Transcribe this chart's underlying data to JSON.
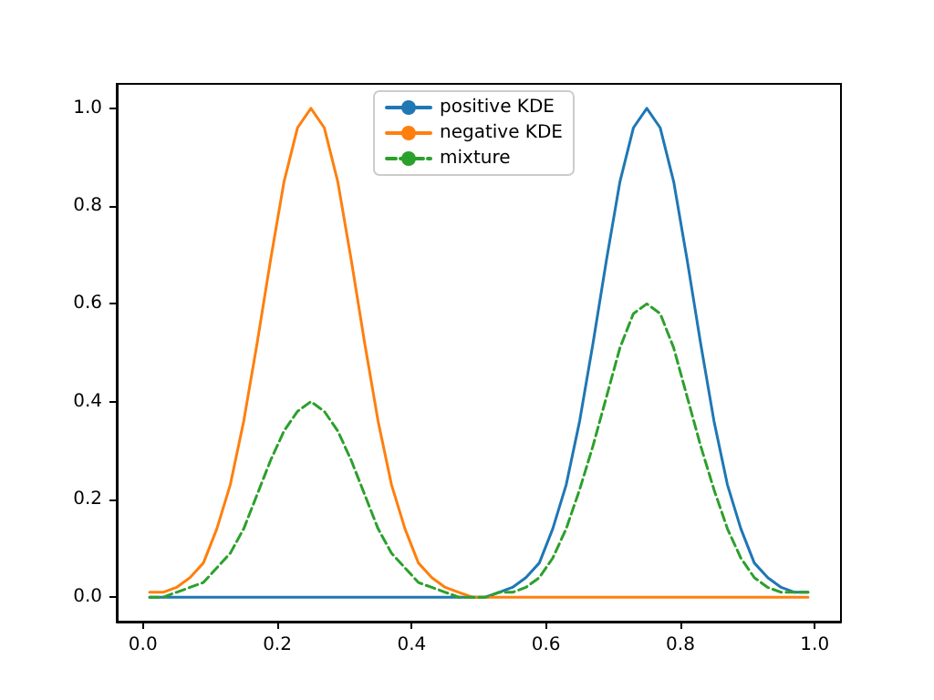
{
  "chart_data": {
    "type": "line",
    "legend": "top",
    "grid": false,
    "marker": "none",
    "x": [
      0.01,
      0.03,
      0.05,
      0.07,
      0.09,
      0.11,
      0.13,
      0.15,
      0.17,
      0.19,
      0.21,
      0.23,
      0.25,
      0.27,
      0.29,
      0.31,
      0.33,
      0.35,
      0.37,
      0.39,
      0.41,
      0.43,
      0.45,
      0.47,
      0.49,
      0.51,
      0.53,
      0.55,
      0.57,
      0.59,
      0.61,
      0.63,
      0.65,
      0.67,
      0.69,
      0.71,
      0.73,
      0.75,
      0.77,
      0.79,
      0.81,
      0.83,
      0.85,
      0.87,
      0.89,
      0.91,
      0.93,
      0.95,
      0.97,
      0.99
    ],
    "xlim": [
      -0.039,
      1.039
    ],
    "ylim": [
      -0.05,
      1.05
    ],
    "xticks": [
      {
        "value": 0,
        "label": "0.0"
      },
      0.2,
      0.4,
      0.6,
      0.8,
      {
        "value": 1,
        "label": "1.0"
      }
    ],
    "yticks": [
      {
        "value": 0,
        "label": "0.0"
      },
      0.2,
      0.4,
      0.6,
      0.8,
      {
        "value": 1,
        "label": "1.0"
      }
    ],
    "series": [
      {
        "name": "positive KDE",
        "color": "#1f77b4",
        "line_style": "solid",
        "values": [
          0,
          0,
          0,
          0,
          0,
          0,
          0,
          0,
          0,
          0,
          0,
          0,
          0,
          0,
          0,
          0,
          0,
          0,
          0,
          0,
          0,
          0,
          0,
          0,
          0,
          0,
          0.01,
          0.02,
          0.04,
          0.07,
          0.14,
          0.23,
          0.36,
          0.52,
          0.69,
          0.85,
          0.96,
          1,
          0.96,
          0.85,
          0.69,
          0.52,
          0.36,
          0.23,
          0.14,
          0.07,
          0.04,
          0.02,
          0.01,
          0.01
        ]
      },
      {
        "name": "negative KDE",
        "color": "#ff7f0e",
        "line_style": "solid",
        "values": [
          0.01,
          0.01,
          0.02,
          0.04,
          0.07,
          0.14,
          0.23,
          0.36,
          0.52,
          0.69,
          0.85,
          0.96,
          1,
          0.96,
          0.85,
          0.69,
          0.52,
          0.36,
          0.23,
          0.14,
          0.07,
          0.04,
          0.02,
          0.01,
          0,
          0,
          0,
          0,
          0,
          0,
          0,
          0,
          0,
          0,
          0,
          0,
          0,
          0,
          0,
          0,
          0,
          0,
          0,
          0,
          0,
          0,
          0,
          0,
          0,
          0
        ]
      },
      {
        "name": "mixture",
        "color": "#2ca02c",
        "line_style": "dashed",
        "values": [
          0,
          0,
          0.01,
          0.02,
          0.03,
          0.06,
          0.09,
          0.14,
          0.21,
          0.28,
          0.34,
          0.38,
          0.4,
          0.38,
          0.34,
          0.28,
          0.21,
          0.14,
          0.09,
          0.06,
          0.03,
          0.02,
          0.01,
          0,
          0,
          0,
          0.01,
          0.01,
          0.02,
          0.04,
          0.08,
          0.14,
          0.22,
          0.31,
          0.41,
          0.51,
          0.58,
          0.6,
          0.58,
          0.51,
          0.41,
          0.31,
          0.22,
          0.14,
          0.08,
          0.04,
          0.02,
          0.01,
          0.01,
          0.01
        ]
      }
    ]
  }
}
